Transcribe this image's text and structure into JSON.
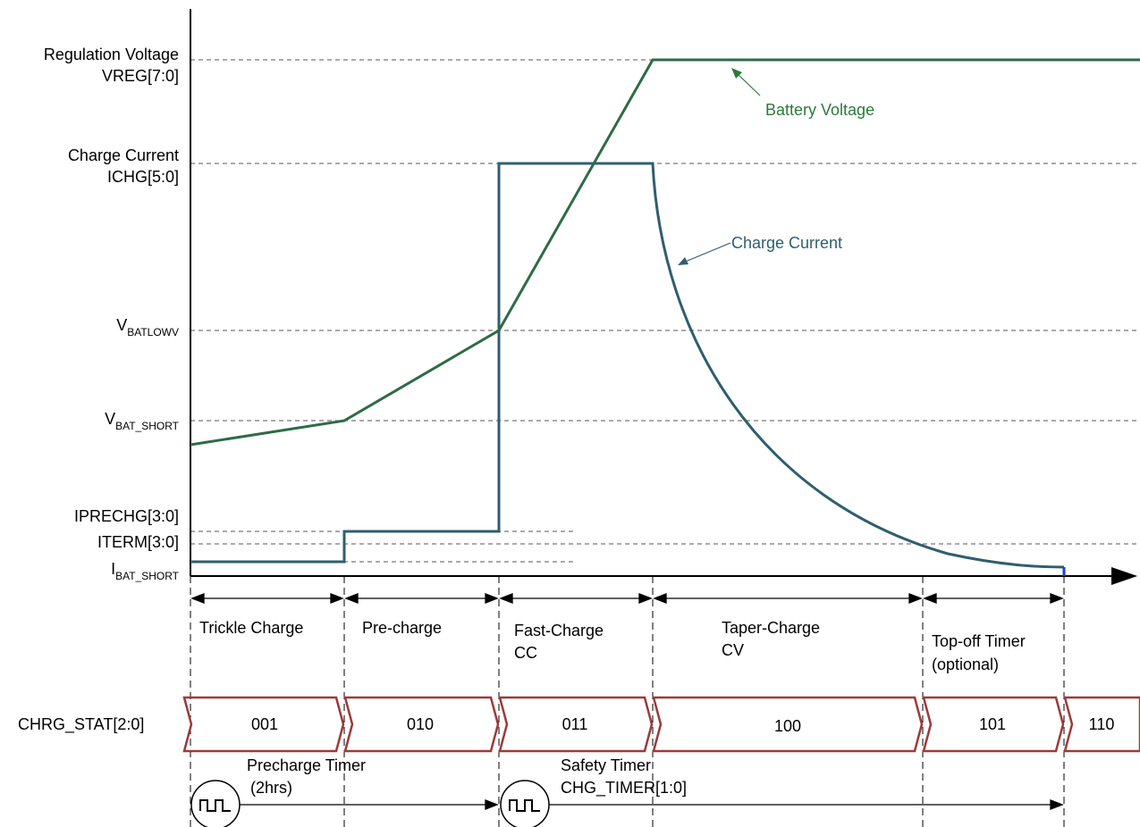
{
  "colors": {
    "voltage": "#2e6b47",
    "current": "#2f5e6e",
    "state_box": "#9b3b3b",
    "voltage_label": "#2b7a3a",
    "current_label": "#2f5e6e",
    "axis": "#000000",
    "grid": "#555555",
    "end_marker": "#1b3fd1"
  },
  "levels": {
    "reg_voltage": {
      "line1": "Regulation Voltage",
      "line2": "VREG[7:0]"
    },
    "charge_current": {
      "line1": "Charge Current",
      "line2": "ICHG[5:0]"
    },
    "vbatlowv": {
      "main": "V",
      "sub": "BATLOWV"
    },
    "vbat_short": {
      "main": "V",
      "sub": "BAT_SHORT"
    },
    "iprechg": "IPRECHG[3:0]",
    "iterm": "ITERM[3:0]",
    "ibat_short": {
      "main": "I",
      "sub": "BAT_SHORT"
    }
  },
  "annotations": {
    "battery_voltage": "Battery Voltage",
    "charge_current": "Charge Current"
  },
  "phases": [
    {
      "line1": "Trickle Charge",
      "line2": ""
    },
    {
      "line1": "Pre-charge",
      "line2": ""
    },
    {
      "line1": "Fast-Charge",
      "line2": "CC"
    },
    {
      "line1": "Taper-Charge",
      "line2": "CV"
    },
    {
      "line1": "Top-off Timer",
      "line2": "(optional)"
    }
  ],
  "status": {
    "label": "CHRG_STAT[2:0]",
    "codes": [
      "001",
      "010",
      "011",
      "100",
      "101",
      "110"
    ]
  },
  "timers": {
    "precharge": {
      "line1": "Precharge Timer",
      "line2": "(2hrs)"
    },
    "safety": {
      "line1": "Safety Timer",
      "line2": "CHG_TIMER[1:0]"
    }
  }
}
